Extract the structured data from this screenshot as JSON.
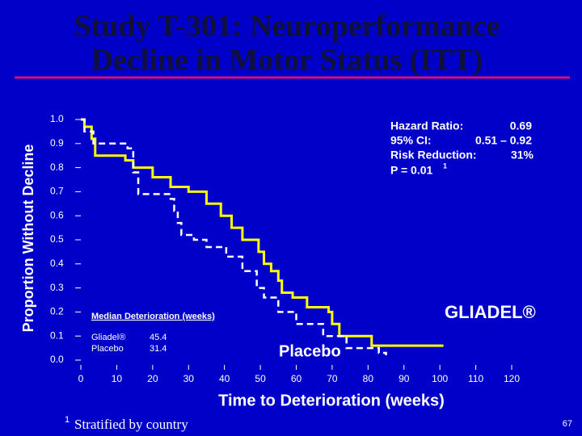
{
  "chart_data": {
    "type": "step",
    "title_lines": [
      "Study T-301:  Neuroperformance",
      "Decline in Motor Status (ITT)"
    ],
    "y_label": "Proportion Without Decline",
    "x_label": "Time to Deterioration (weeks)",
    "xlim": [
      0,
      120
    ],
    "xticks": [
      0,
      10,
      20,
      30,
      40,
      50,
      60,
      70,
      80,
      90,
      100,
      110,
      120
    ],
    "ylim": [
      0,
      1
    ],
    "yticks": [
      {
        "value": 0,
        "label": "0.0"
      },
      0.1,
      0.2,
      0.3,
      0.4,
      0.5,
      0.6,
      0.7,
      0.8,
      0.9,
      {
        "value": 1,
        "label": "1.0"
      }
    ],
    "series": [
      {
        "name": "GLIADEL®",
        "color": "#ffff00",
        "x": [
          0,
          1,
          3,
          4,
          12.4,
          14.6,
          20,
          25,
          30,
          35,
          39,
          42,
          45,
          49.5,
          51,
          53,
          55,
          56,
          59,
          63,
          69,
          70,
          72,
          81,
          101
        ],
        "values": [
          1.0,
          0.97,
          0.92,
          0.85,
          0.83,
          0.8,
          0.76,
          0.72,
          0.7,
          0.65,
          0.6,
          0.55,
          0.5,
          0.45,
          0.4,
          0.37,
          0.33,
          0.28,
          0.26,
          0.22,
          0.2,
          0.15,
          0.1,
          0.06,
          0.06
        ]
      },
      {
        "name": "Placebo",
        "color": "#ffffff",
        "x": [
          0,
          1,
          3.5,
          13,
          14.6,
          16,
          25,
          26,
          27,
          28,
          31.5,
          35,
          40.5,
          45,
          49,
          51,
          55,
          60,
          67.5,
          74,
          83,
          85
        ],
        "values": [
          1.0,
          0.95,
          0.9,
          0.88,
          0.78,
          0.69,
          0.67,
          0.62,
          0.57,
          0.52,
          0.5,
          0.47,
          0.43,
          0.37,
          0.3,
          0.26,
          0.2,
          0.15,
          0.1,
          0.05,
          0.03,
          0.02
        ]
      }
    ],
    "stats": {
      "rows": [
        {
          "label": "Hazard Ratio:",
          "value": "0.69"
        },
        {
          "label": "95% CI:",
          "value": "0.51 – 0.92"
        },
        {
          "label": "Risk Reduction:",
          "value": "31%"
        }
      ],
      "p_value": "P = 0.01",
      "p_note": "1"
    },
    "median": {
      "title": "Median Deterioration (weeks)",
      "rows": [
        {
          "label": "Gliadel®",
          "value": 45.4
        },
        {
          "label": "Placebo",
          "value": 31.4
        }
      ]
    },
    "footnote": {
      "marker": "1",
      "text": "Stratified by country"
    },
    "page_number": "67"
  }
}
